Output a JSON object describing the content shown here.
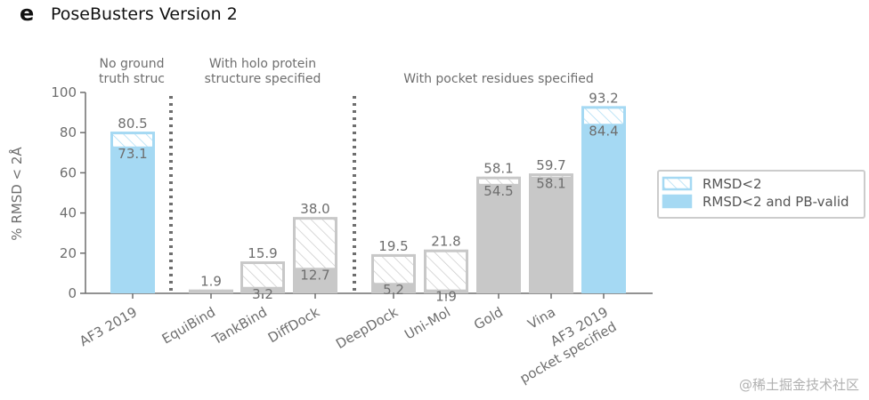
{
  "panel_letter": "e",
  "title": "PoseBusters Version 2",
  "watermark": "@稀土掘金技术社区",
  "colors": {
    "blue": "#a5d9f3",
    "blue_edge": "#a5d9f3",
    "gray": "#c8c8c8",
    "gray_edge": "#c8c8c8",
    "axis": "#6e6e6e",
    "text": "#6e6e6e",
    "divider": "#6e6e6e"
  },
  "chart_data": {
    "type": "bar",
    "title": "PoseBusters Version 2",
    "ylabel": "% RMSD < 2Å",
    "xlabel": "",
    "ylim": [
      0,
      100
    ],
    "yticks": [
      0,
      20,
      40,
      60,
      80,
      100
    ],
    "categories": [
      "AF3 2019",
      "EquiBind",
      "TankBind",
      "DiffDock",
      "DeepDock",
      "Uni-Mol",
      "Gold",
      "Vina",
      "AF3 2019\npocket specified"
    ],
    "series": [
      {
        "name": "RMSD<2",
        "values": [
          80.5,
          1.9,
          15.9,
          38.0,
          19.5,
          21.8,
          58.1,
          59.7,
          93.2
        ]
      },
      {
        "name": "RMSD<2 and PB-valid",
        "values": [
          73.1,
          0,
          3.2,
          12.7,
          5.2,
          1.9,
          54.5,
          58.1,
          84.4
        ]
      }
    ],
    "top_labels": [
      "80.5",
      "1.9",
      "15.9",
      "38.0",
      "19.5",
      "21.8",
      "58.1",
      "59.7",
      "93.2"
    ],
    "inner_labels": [
      "73.1",
      "",
      "3.2",
      "12.7",
      "5.2",
      "1.9",
      "54.5",
      "58.1",
      "84.4"
    ],
    "bar_colors": [
      "blue",
      "gray",
      "gray",
      "gray",
      "gray",
      "gray",
      "gray",
      "gray",
      "blue"
    ],
    "groups": [
      {
        "label_lines": [
          "No ground",
          "truth struc"
        ],
        "start": 0,
        "end": 0
      },
      {
        "label_lines": [
          "With holo protein",
          "structure specified"
        ],
        "start": 1,
        "end": 3
      },
      {
        "label_lines": [
          "With pocket residues specified"
        ],
        "start": 4,
        "end": 8
      }
    ],
    "dividers_after": [
      0,
      3
    ],
    "grid": false,
    "legend_position": "right",
    "legend": [
      {
        "label": "RMSD<2",
        "style": "hatched"
      },
      {
        "label": "RMSD<2 and PB-valid",
        "style": "solid"
      }
    ]
  }
}
